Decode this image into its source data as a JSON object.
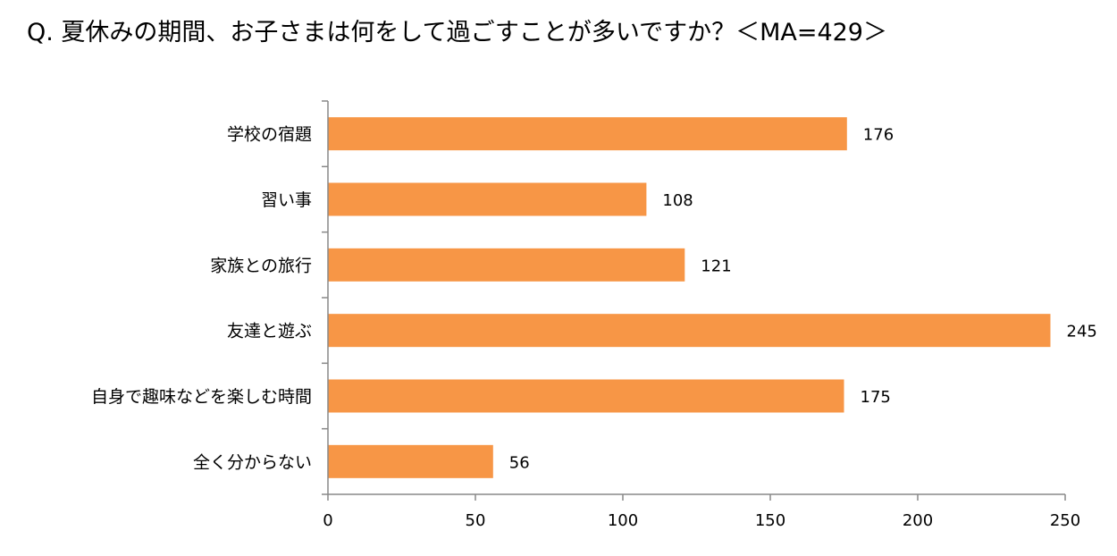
{
  "chart_data": {
    "type": "bar",
    "orientation": "horizontal",
    "title": "Q. 夏休みの期間、お子さまは何をして過ごすことが多いですか？＜MA=429＞",
    "categories": [
      "学校の宿題",
      "習い事",
      "家族との旅行",
      "友達と遊ぶ",
      "自身で趣味などを楽しむ時間",
      "全く分からない"
    ],
    "values": [
      176,
      108,
      121,
      245,
      175,
      56
    ],
    "xlim": [
      0,
      250
    ],
    "xticks": [
      0,
      50,
      100,
      150,
      200,
      250
    ],
    "grid": false,
    "legend": "none",
    "bar_color": "#F79646",
    "axis_color": "#888888"
  }
}
